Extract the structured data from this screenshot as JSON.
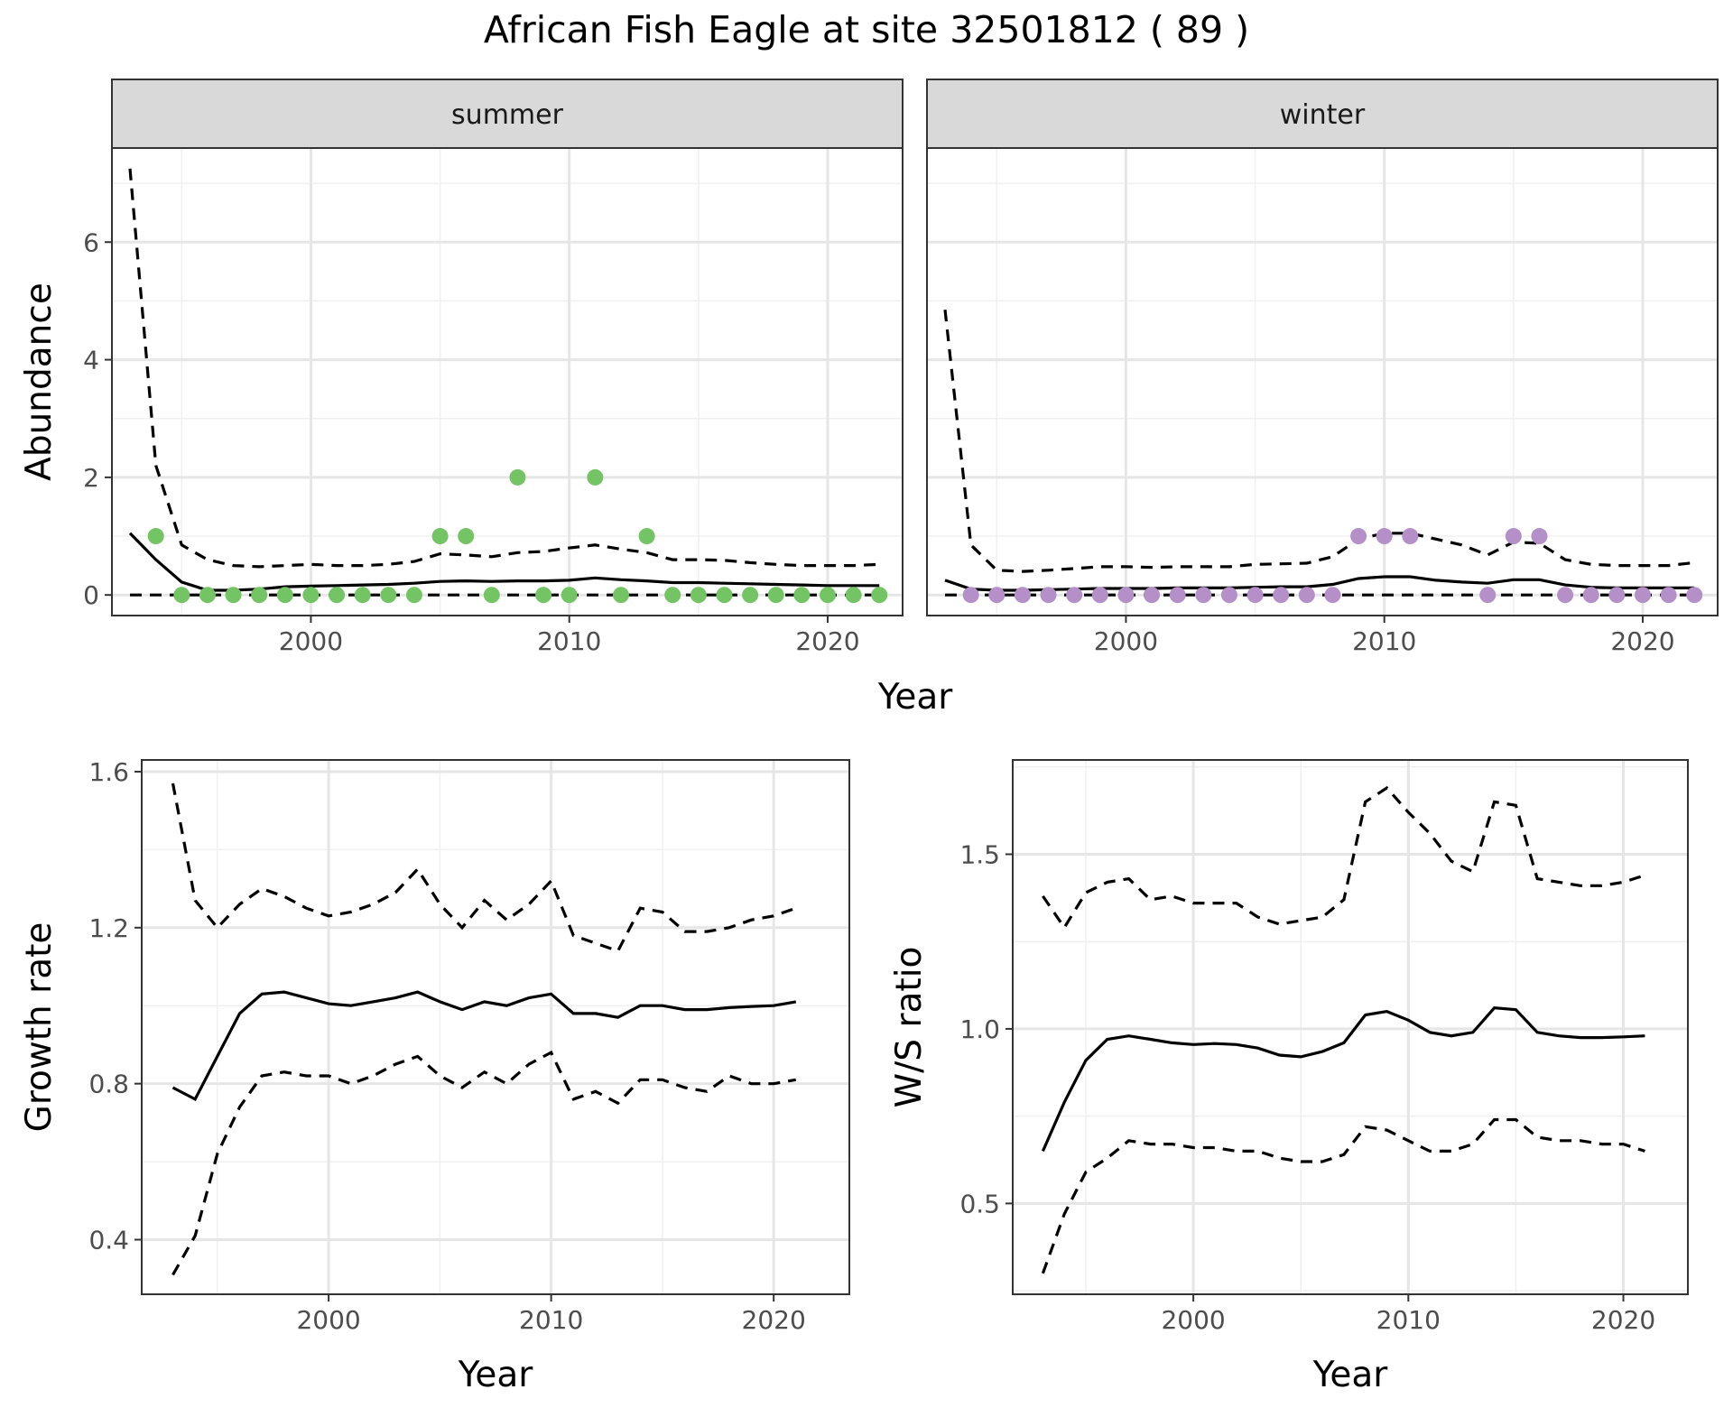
{
  "title": "African Fish Eagle at site 32501812 ( 89 )",
  "chart_data": [
    {
      "type": "line",
      "panel": "abundance",
      "facets": [
        "summer",
        "winter"
      ],
      "xlabel": "Year",
      "ylabel": "Abundance",
      "xlim": [
        1992.3,
        2022.9
      ],
      "ylim": [
        -0.35,
        7.6
      ],
      "xticks": [
        2000,
        2010,
        2020
      ],
      "yticks": [
        0,
        2,
        4,
        6
      ],
      "grid": true,
      "legend": "none",
      "colors": {
        "summer": "#74c365",
        "winter": "#b48fc8"
      },
      "series": [
        {
          "facet": "summer",
          "years": [
            1993,
            1994,
            1995,
            1996,
            1997,
            1998,
            1999,
            2000,
            2001,
            2002,
            2003,
            2004,
            2005,
            2006,
            2007,
            2008,
            2009,
            2010,
            2011,
            2012,
            2013,
            2014,
            2015,
            2016,
            2017,
            2018,
            2019,
            2020,
            2021,
            2022
          ],
          "estimate": [
            1.05,
            0.6,
            0.22,
            0.08,
            0.08,
            0.1,
            0.14,
            0.15,
            0.16,
            0.17,
            0.18,
            0.2,
            0.23,
            0.24,
            0.23,
            0.24,
            0.24,
            0.25,
            0.29,
            0.26,
            0.24,
            0.21,
            0.21,
            0.2,
            0.19,
            0.18,
            0.17,
            0.16,
            0.16,
            0.16
          ],
          "upper": [
            7.25,
            2.2,
            0.85,
            0.6,
            0.5,
            0.48,
            0.5,
            0.52,
            0.5,
            0.5,
            0.52,
            0.57,
            0.7,
            0.68,
            0.65,
            0.72,
            0.74,
            0.8,
            0.85,
            0.78,
            0.72,
            0.6,
            0.6,
            0.59,
            0.55,
            0.52,
            0.5,
            0.5,
            0.5,
            0.52
          ],
          "lower": [
            0,
            0,
            0,
            0,
            0,
            0,
            0,
            0,
            0,
            0,
            0,
            0,
            0,
            0,
            0,
            0,
            0,
            0,
            0,
            0,
            0,
            0,
            0,
            0,
            0,
            0,
            0,
            0,
            0,
            0
          ],
          "observed_years": [
            1994,
            1995,
            1996,
            1997,
            1998,
            1999,
            2000,
            2001,
            2002,
            2003,
            2004,
            2005,
            2006,
            2007,
            2008,
            2009,
            2010,
            2011,
            2012,
            2013,
            2014,
            2015,
            2016,
            2017,
            2018,
            2019,
            2020,
            2021,
            2022
          ],
          "observed": [
            1,
            0,
            0,
            0,
            0,
            0,
            0,
            0,
            0,
            0,
            0,
            1,
            1,
            0,
            2,
            0,
            0,
            2,
            0,
            1,
            0,
            0,
            0,
            0,
            0,
            0,
            0,
            0,
            0
          ]
        },
        {
          "facet": "winter",
          "years": [
            1993,
            1994,
            1995,
            1996,
            1997,
            1998,
            1999,
            2000,
            2001,
            2002,
            2003,
            2004,
            2005,
            2006,
            2007,
            2008,
            2009,
            2010,
            2011,
            2012,
            2013,
            2014,
            2015,
            2016,
            2017,
            2018,
            2019,
            2020,
            2021,
            2022
          ],
          "estimate": [
            0.25,
            0.1,
            0.08,
            0.08,
            0.09,
            0.1,
            0.11,
            0.11,
            0.11,
            0.12,
            0.12,
            0.12,
            0.13,
            0.14,
            0.14,
            0.18,
            0.28,
            0.31,
            0.31,
            0.25,
            0.22,
            0.2,
            0.26,
            0.26,
            0.17,
            0.13,
            0.12,
            0.12,
            0.12,
            0.12
          ],
          "upper": [
            4.85,
            0.85,
            0.42,
            0.4,
            0.42,
            0.45,
            0.48,
            0.48,
            0.47,
            0.48,
            0.48,
            0.48,
            0.52,
            0.53,
            0.54,
            0.65,
            0.95,
            1.05,
            1.05,
            0.95,
            0.85,
            0.68,
            0.9,
            0.88,
            0.6,
            0.52,
            0.5,
            0.5,
            0.5,
            0.55
          ],
          "lower": [
            0,
            0,
            0,
            0,
            0,
            0,
            0,
            0,
            0,
            0,
            0,
            0,
            0,
            0,
            0,
            0,
            0,
            0,
            0,
            0,
            0,
            0,
            0,
            0,
            0,
            0,
            0,
            0,
            0,
            0
          ],
          "observed_years": [
            1994,
            1995,
            1996,
            1997,
            1998,
            1999,
            2000,
            2001,
            2002,
            2003,
            2004,
            2005,
            2006,
            2007,
            2008,
            2009,
            2010,
            2011,
            2014,
            2015,
            2016,
            2017,
            2018,
            2019,
            2020,
            2021,
            2022
          ],
          "observed": [
            0,
            0,
            0,
            0,
            0,
            0,
            0,
            0,
            0,
            0,
            0,
            0,
            0,
            0,
            0,
            1,
            1,
            1,
            0,
            1,
            1,
            0,
            0,
            0,
            0,
            0,
            0
          ]
        }
      ]
    },
    {
      "type": "line",
      "panel": "growth",
      "xlabel": "Year",
      "ylabel": "Growth rate",
      "xlim": [
        1991.6,
        2023.4
      ],
      "ylim": [
        0.26,
        1.63
      ],
      "xticks": [
        2000,
        2010,
        2020
      ],
      "yticks": [
        0.4,
        0.8,
        1.2,
        1.6
      ],
      "yticklabels": [
        "0.4",
        "0.8",
        "1.2",
        "1.6"
      ],
      "grid": true,
      "legend": "none",
      "years": [
        1993,
        1994,
        1995,
        1996,
        1997,
        1998,
        1999,
        2000,
        2001,
        2002,
        2003,
        2004,
        2005,
        2006,
        2007,
        2008,
        2009,
        2010,
        2011,
        2012,
        2013,
        2014,
        2015,
        2016,
        2017,
        2018,
        2019,
        2020,
        2021
      ],
      "estimate": [
        0.79,
        0.76,
        0.87,
        0.98,
        1.03,
        1.035,
        1.02,
        1.005,
        1.0,
        1.01,
        1.02,
        1.035,
        1.01,
        0.99,
        1.01,
        1.0,
        1.02,
        1.03,
        0.98,
        0.98,
        0.97,
        1.0,
        1.0,
        0.99,
        0.99,
        0.995,
        0.998,
        1.0,
        1.01
      ],
      "upper": [
        1.57,
        1.27,
        1.2,
        1.26,
        1.3,
        1.28,
        1.25,
        1.23,
        1.24,
        1.26,
        1.29,
        1.35,
        1.26,
        1.2,
        1.27,
        1.22,
        1.26,
        1.32,
        1.18,
        1.16,
        1.14,
        1.25,
        1.24,
        1.19,
        1.19,
        1.2,
        1.22,
        1.23,
        1.25
      ],
      "lower": [
        0.31,
        0.41,
        0.62,
        0.74,
        0.82,
        0.83,
        0.82,
        0.82,
        0.8,
        0.82,
        0.85,
        0.87,
        0.82,
        0.79,
        0.83,
        0.8,
        0.85,
        0.88,
        0.76,
        0.78,
        0.75,
        0.81,
        0.81,
        0.79,
        0.78,
        0.82,
        0.8,
        0.8,
        0.81
      ]
    },
    {
      "type": "line",
      "panel": "ws_ratio",
      "xlabel": "Year",
      "ylabel": "W/S ratio",
      "xlim": [
        1991.6,
        2023.0
      ],
      "ylim": [
        0.24,
        1.77
      ],
      "xticks": [
        2000,
        2010,
        2020
      ],
      "yticks": [
        0.5,
        1.0,
        1.5
      ],
      "yticklabels": [
        "0.5",
        "1.0",
        "1.5"
      ],
      "grid": true,
      "legend": "none",
      "years": [
        1993,
        1994,
        1995,
        1996,
        1997,
        1998,
        1999,
        2000,
        2001,
        2002,
        2003,
        2004,
        2005,
        2006,
        2007,
        2008,
        2009,
        2010,
        2011,
        2012,
        2013,
        2014,
        2015,
        2016,
        2017,
        2018,
        2019,
        2020,
        2021
      ],
      "estimate": [
        0.65,
        0.79,
        0.91,
        0.97,
        0.98,
        0.97,
        0.96,
        0.955,
        0.958,
        0.955,
        0.945,
        0.925,
        0.92,
        0.935,
        0.96,
        1.04,
        1.05,
        1.025,
        0.99,
        0.98,
        0.99,
        1.06,
        1.055,
        0.99,
        0.98,
        0.975,
        0.975,
        0.977,
        0.98
      ],
      "upper": [
        1.38,
        1.29,
        1.39,
        1.42,
        1.43,
        1.37,
        1.38,
        1.36,
        1.36,
        1.36,
        1.32,
        1.3,
        1.31,
        1.32,
        1.37,
        1.65,
        1.69,
        1.62,
        1.56,
        1.48,
        1.45,
        1.65,
        1.64,
        1.43,
        1.42,
        1.41,
        1.41,
        1.42,
        1.44
      ],
      "lower": [
        0.3,
        0.47,
        0.59,
        0.63,
        0.68,
        0.67,
        0.67,
        0.66,
        0.66,
        0.65,
        0.65,
        0.63,
        0.62,
        0.62,
        0.64,
        0.72,
        0.71,
        0.68,
        0.65,
        0.65,
        0.67,
        0.74,
        0.74,
        0.69,
        0.68,
        0.68,
        0.67,
        0.67,
        0.65
      ]
    }
  ]
}
